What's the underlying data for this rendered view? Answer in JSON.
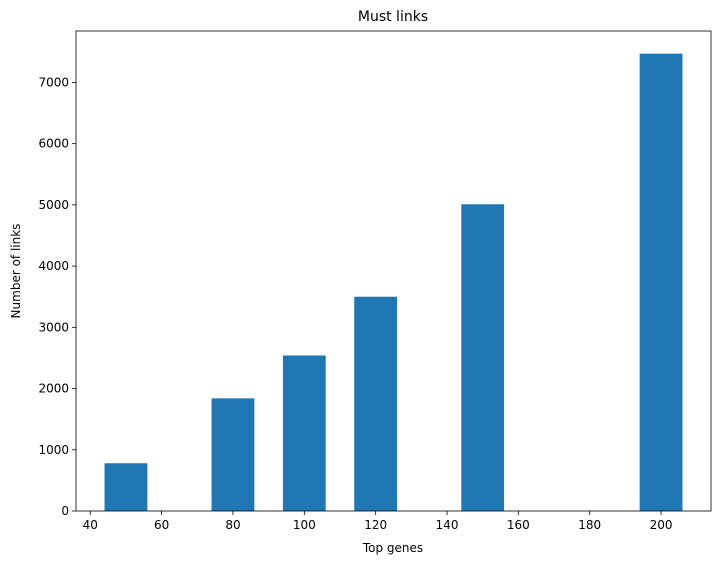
{
  "chart_data": {
    "type": "bar",
    "title": "Must links",
    "xlabel": "Top genes",
    "ylabel": "Number of links",
    "x": [
      50,
      80,
      100,
      120,
      150,
      200
    ],
    "values": [
      780,
      1840,
      2540,
      3500,
      5010,
      7470
    ],
    "bar_width": 12,
    "xlim": [
      36,
      214
    ],
    "ylim": [
      0,
      7840
    ],
    "xticks": [
      40,
      60,
      80,
      100,
      120,
      140,
      160,
      180,
      200
    ],
    "yticks": [
      0,
      1000,
      2000,
      3000,
      4000,
      5000,
      6000,
      7000
    ],
    "grid": false,
    "bar_color": "#1f77b4"
  }
}
